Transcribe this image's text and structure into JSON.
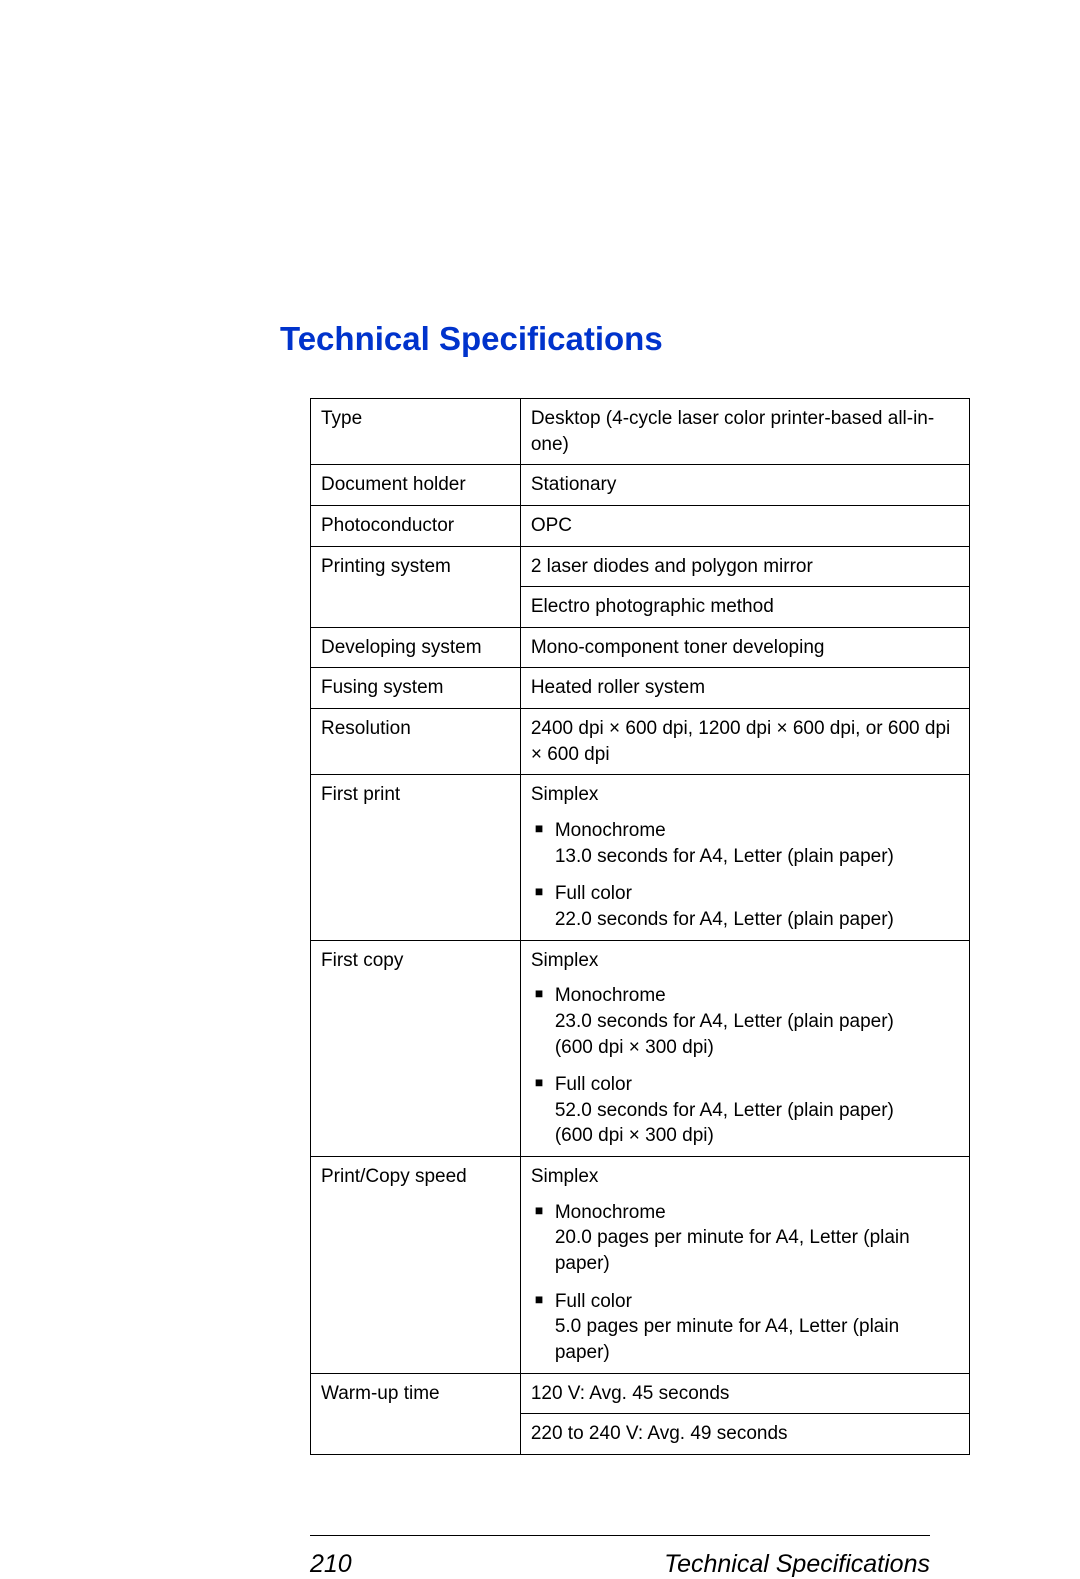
{
  "heading": "Technical Specifications",
  "rows": {
    "type_label": "Type",
    "type_value": "Desktop (4-cycle laser color printer-based all-in-one)",
    "docholder_label": "Document holder",
    "docholder_value": "Stationary",
    "photo_label": "Photoconductor",
    "photo_value": "OPC",
    "printsys_label": "Printing system",
    "printsys_value1": "2 laser diodes and polygon mirror",
    "printsys_value2": "Electro photographic method",
    "devsys_label": "Developing system",
    "devsys_value": "Mono-component toner developing",
    "fusing_label": "Fusing system",
    "fusing_value": "Heated roller system",
    "res_label": "Resolution",
    "res_value": "2400 dpi × 600 dpi, 1200 dpi × 600 dpi, or 600 dpi × 600 dpi",
    "firstprint_label": "First print",
    "firstprint_simplex": "Simplex",
    "firstprint_mono_h": "Monochrome",
    "firstprint_mono_v": "13.0 seconds for A4, Letter (plain paper)",
    "firstprint_color_h": "Full color",
    "firstprint_color_v": "22.0 seconds for A4, Letter (plain paper)",
    "firstcopy_label": "First copy",
    "firstcopy_simplex": "Simplex",
    "firstcopy_mono_h": "Monochrome",
    "firstcopy_mono_v1": "23.0 seconds for A4, Letter (plain paper)",
    "firstcopy_mono_v2": "(600 dpi × 300 dpi)",
    "firstcopy_color_h": "Full color",
    "firstcopy_color_v1": "52.0 seconds for A4, Letter (plain paper)",
    "firstcopy_color_v2": "(600 dpi × 300 dpi)",
    "speed_label": "Print/Copy speed",
    "speed_simplex": "Simplex",
    "speed_mono_h": "Monochrome",
    "speed_mono_v": "20.0 pages per minute for A4, Letter (plain paper)",
    "speed_color_h": "Full color",
    "speed_color_v": "5.0 pages per minute for A4, Letter (plain paper)",
    "warmup_label": "Warm-up time",
    "warmup_v1": "120 V: Avg. 45 seconds",
    "warmup_v2": "220 to 240 V: Avg. 49 seconds"
  },
  "footer": {
    "page_number": "210",
    "title": "Technical Specifications"
  }
}
